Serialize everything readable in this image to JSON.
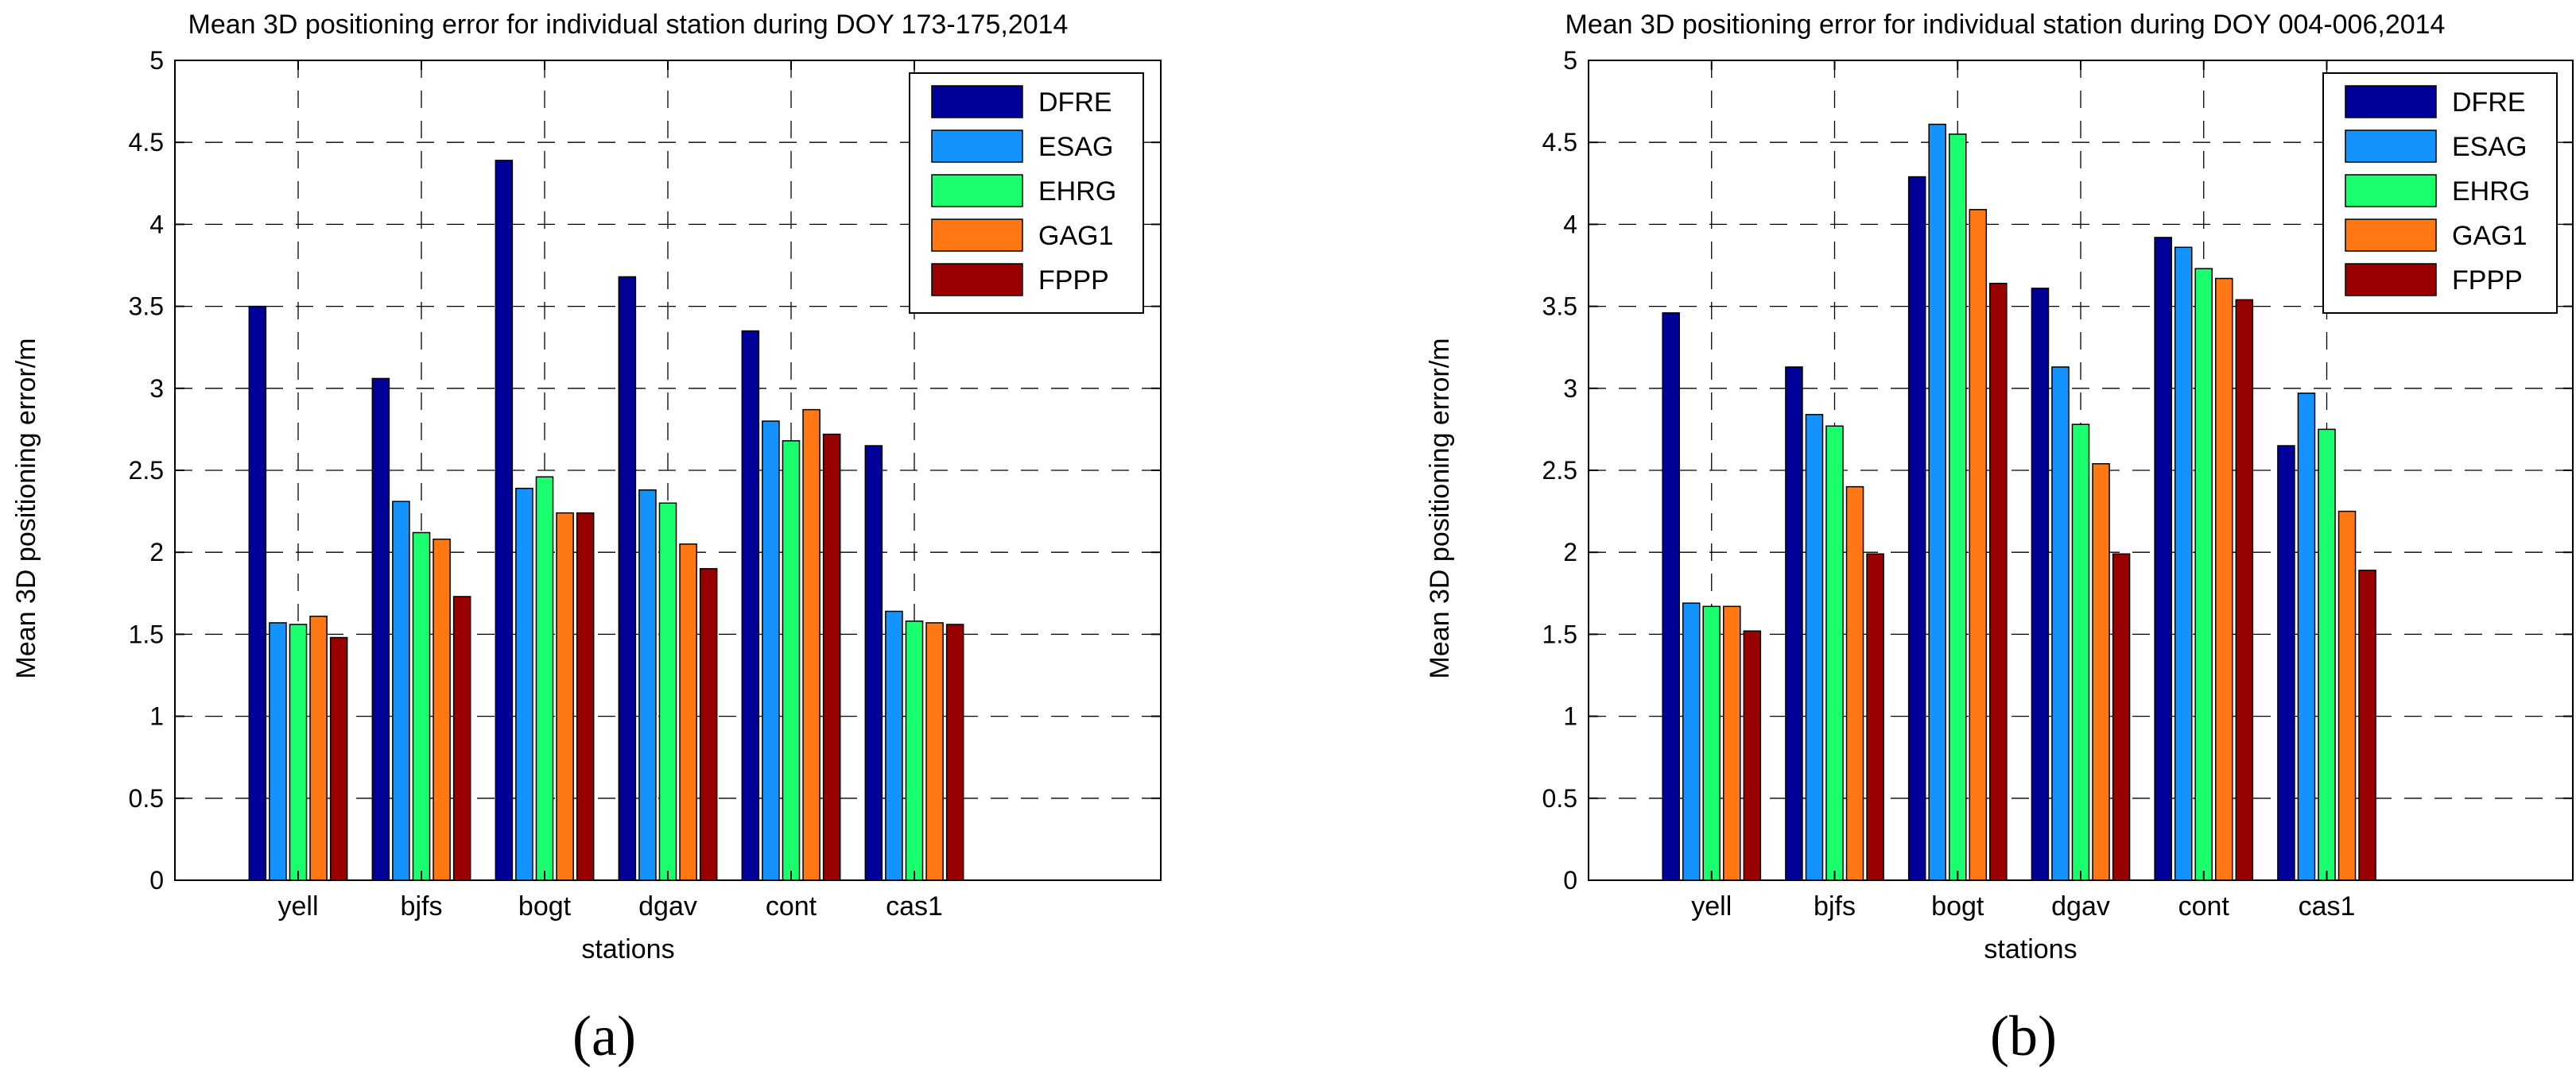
{
  "chart_data": [
    {
      "type": "bar",
      "title": "Mean 3D positioning error for individual station during DOY 173-175,2014",
      "xlabel": "stations",
      "ylabel": "Mean 3D positioning error/m",
      "ylim": [
        0,
        5
      ],
      "yticks": [
        "0",
        "0.5",
        "1",
        "1.5",
        "2",
        "2.5",
        "3",
        "3.5",
        "4",
        "4.5",
        "5"
      ],
      "grid": true,
      "legend_position": "top-right",
      "panel_label": "(a)",
      "categories": [
        "yell",
        "bjfs",
        "bogt",
        "dgav",
        "cont",
        "cas1"
      ],
      "series": [
        {
          "name": "DFRE",
          "color": "#000099",
          "values": [
            3.5,
            3.06,
            4.39,
            3.68,
            3.35,
            2.65
          ]
        },
        {
          "name": "ESAG",
          "color": "#1493FF",
          "values": [
            1.57,
            2.31,
            2.39,
            2.38,
            2.8,
            1.64
          ]
        },
        {
          "name": "EHRG",
          "color": "#19FF6E",
          "values": [
            1.56,
            2.12,
            2.46,
            2.3,
            2.68,
            1.58
          ]
        },
        {
          "name": "GAG1",
          "color": "#FF7814",
          "values": [
            1.61,
            2.08,
            2.24,
            2.05,
            2.87,
            1.57
          ]
        },
        {
          "name": "FPPP",
          "color": "#990000",
          "values": [
            1.48,
            1.73,
            2.24,
            1.9,
            2.72,
            1.56
          ]
        }
      ]
    },
    {
      "type": "bar",
      "title": "Mean 3D positioning error for individual station during DOY 004-006,2014",
      "xlabel": "stations",
      "ylabel": "Mean 3D positioning error/m",
      "ylim": [
        0,
        5
      ],
      "yticks": [
        "0",
        "0.5",
        "1",
        "1.5",
        "2",
        "2.5",
        "3",
        "3.5",
        "4",
        "4.5",
        "5"
      ],
      "grid": true,
      "legend_position": "top-right",
      "panel_label": "(b)",
      "categories": [
        "yell",
        "bjfs",
        "bogt",
        "dgav",
        "cont",
        "cas1"
      ],
      "series": [
        {
          "name": "DFRE",
          "color": "#000099",
          "values": [
            3.46,
            3.13,
            4.29,
            3.61,
            3.92,
            2.65
          ]
        },
        {
          "name": "ESAG",
          "color": "#1493FF",
          "values": [
            1.69,
            2.84,
            4.61,
            3.13,
            3.86,
            2.97
          ]
        },
        {
          "name": "EHRG",
          "color": "#19FF6E",
          "values": [
            1.67,
            2.77,
            4.55,
            2.78,
            3.73,
            2.75
          ]
        },
        {
          "name": "GAG1",
          "color": "#FF7814",
          "values": [
            1.67,
            2.4,
            4.09,
            2.54,
            3.67,
            2.25
          ]
        },
        {
          "name": "FPPP",
          "color": "#990000",
          "values": [
            1.52,
            1.99,
            3.64,
            1.99,
            3.54,
            1.89
          ]
        }
      ]
    }
  ]
}
